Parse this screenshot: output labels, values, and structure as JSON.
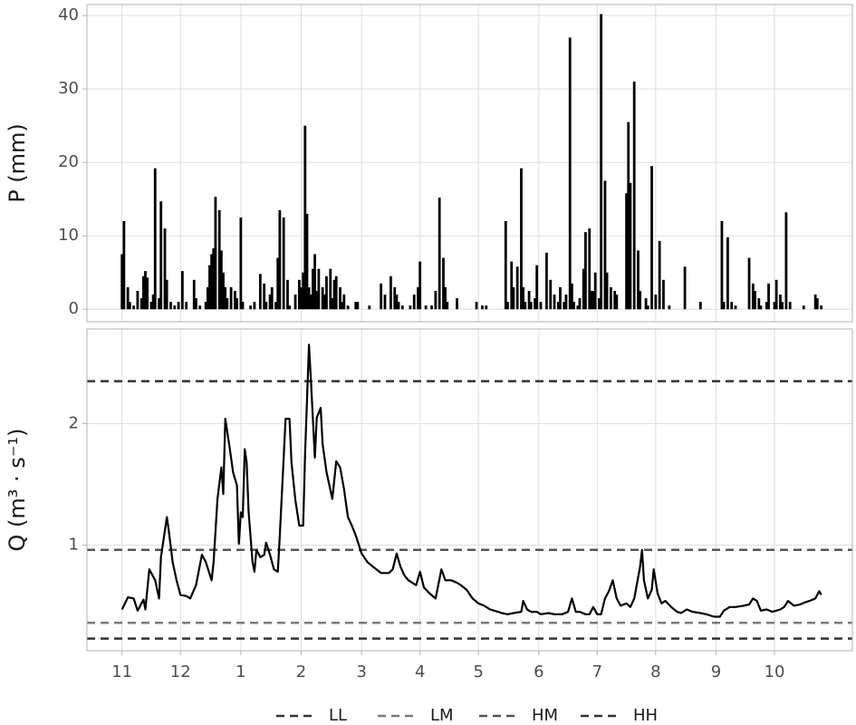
{
  "chart_data": [
    {
      "type": "bar",
      "ylabel": "P (mm)",
      "color": "#000000",
      "ylim": [
        -1.7,
        41.5
      ],
      "yticks": [
        0,
        10,
        20,
        30,
        40
      ],
      "grid": true,
      "x": [
        0,
        1,
        3,
        4,
        6,
        8,
        10,
        11,
        12,
        13,
        15,
        16,
        17,
        19,
        20,
        22,
        23,
        25,
        27,
        29,
        31,
        33,
        37,
        38,
        40,
        43,
        44,
        45,
        46,
        47,
        48,
        50,
        51,
        52,
        53,
        54,
        56,
        58,
        59,
        61,
        62,
        66,
        68,
        71,
        73,
        74,
        76,
        77,
        79,
        80,
        81,
        83,
        85,
        86,
        89,
        91,
        92,
        93,
        94,
        95,
        96,
        97,
        98,
        99,
        100,
        101,
        103,
        104,
        105,
        107,
        108,
        109,
        110,
        112,
        113,
        114,
        116,
        120,
        121,
        127,
        133,
        135,
        138,
        140,
        141,
        142,
        144,
        148,
        150,
        152,
        153,
        156,
        159,
        161,
        163,
        165,
        166,
        167,
        172,
        182,
        185,
        187,
        197,
        198,
        200,
        201,
        203,
        205,
        206,
        207,
        209,
        210,
        212,
        213,
        215,
        218,
        220,
        222,
        224,
        225,
        227,
        228,
        230,
        231,
        232,
        234,
        235,
        237,
        238,
        240,
        241,
        242,
        243,
        245,
        246,
        248,
        249,
        251,
        253,
        254,
        259,
        260,
        261,
        263,
        265,
        266,
        269,
        270,
        272,
        274,
        276,
        278,
        281,
        289,
        297,
        308,
        309,
        311,
        313,
        315,
        322,
        324,
        325,
        327,
        328,
        331,
        332,
        335,
        336,
        338,
        339,
        341,
        343,
        350,
        356,
        357,
        359
      ],
      "values": [
        7.5,
        12,
        3,
        1,
        0.5,
        2.5,
        1.5,
        4.5,
        5.2,
        4.3,
        1,
        2,
        19.2,
        1.5,
        14.7,
        11,
        4,
        1,
        0.5,
        1,
        5.2,
        1,
        4,
        1.5,
        0.5,
        1,
        3,
        6,
        7.5,
        8.3,
        15.3,
        13.5,
        8,
        5,
        3,
        1.5,
        3,
        2.5,
        1.5,
        12.5,
        1,
        0.5,
        1,
        4.8,
        3.5,
        1,
        2,
        3,
        1,
        7,
        13.5,
        12.5,
        4,
        0.5,
        2,
        4,
        3,
        5,
        25,
        13,
        3,
        2,
        5.5,
        7.5,
        2.5,
        5.5,
        3,
        2,
        4.5,
        5.5,
        1.5,
        4,
        4.5,
        3,
        1,
        2,
        0.5,
        1,
        1,
        0.5,
        3.5,
        2,
        4.5,
        3,
        2,
        1,
        0.5,
        0.5,
        2,
        3,
        6.5,
        0.5,
        0.5,
        2.5,
        15.2,
        7,
        3,
        1,
        1.5,
        1,
        0.5,
        0.5,
        12,
        1,
        6.5,
        3,
        5.8,
        19.2,
        3,
        1,
        2.5,
        1,
        1.5,
        6,
        1,
        7.7,
        4,
        2,
        1,
        3,
        1,
        2,
        37,
        3.5,
        1,
        0.5,
        1.5,
        5.5,
        10.5,
        11,
        2.5,
        2.5,
        5,
        1.5,
        40.2,
        17.5,
        5,
        3,
        2.5,
        2,
        15.8,
        25.5,
        17.2,
        31,
        8,
        2.5,
        1.5,
        0.5,
        19.5,
        2,
        9.3,
        4,
        0.5,
        5.8,
        1,
        12,
        1,
        9.8,
        1,
        0.5,
        7,
        3.5,
        2.5,
        1.5,
        0.5,
        1,
        3.5,
        1,
        4,
        2,
        1,
        13.2,
        1,
        0.5,
        2,
        1.5,
        0.5
      ]
    },
    {
      "type": "line",
      "ylabel": "Q (m³ · s⁻¹)",
      "color": "#000000",
      "xlim": [
        -18,
        375
      ],
      "xticks": [
        {
          "value": 0,
          "label": "11"
        },
        {
          "value": 30,
          "label": "12"
        },
        {
          "value": 61,
          "label": "1"
        },
        {
          "value": 92,
          "label": "2"
        },
        {
          "value": 123,
          "label": "3"
        },
        {
          "value": 153,
          "label": "4"
        },
        {
          "value": 183,
          "label": "5"
        },
        {
          "value": 214,
          "label": "6"
        },
        {
          "value": 244,
          "label": "7"
        },
        {
          "value": 274,
          "label": "8"
        },
        {
          "value": 305,
          "label": "9"
        },
        {
          "value": 335,
          "label": "10"
        }
      ],
      "ylim": [
        0.13,
        2.78
      ],
      "yticks": [
        1,
        2
      ],
      "grid": true,
      "x": [
        0,
        3,
        6,
        8,
        11,
        12,
        14,
        17,
        19,
        20,
        23,
        24,
        26,
        28,
        30,
        33,
        35,
        38,
        41,
        43,
        46,
        47,
        49,
        51,
        52,
        53,
        55,
        57,
        59,
        60,
        61,
        62,
        63,
        64,
        65,
        67,
        68,
        69,
        71,
        73,
        74,
        76,
        78,
        80,
        81,
        84,
        86,
        87,
        89,
        91,
        93,
        94,
        96,
        97,
        99,
        100,
        102,
        103,
        105,
        108,
        110,
        112,
        114,
        116,
        118,
        120,
        123,
        126,
        129,
        133,
        137,
        139,
        141,
        143,
        145,
        147,
        151,
        153,
        155,
        158,
        161,
        164,
        166,
        169,
        172,
        174,
        177,
        180,
        183,
        186,
        189,
        193,
        195,
        198,
        201,
        205,
        206,
        208,
        210,
        213,
        215,
        219,
        222,
        226,
        229,
        231,
        233,
        235,
        238,
        240,
        242,
        244,
        246,
        248,
        250,
        252,
        254,
        256,
        259,
        261,
        263,
        266,
        267,
        268,
        270,
        272,
        273,
        275,
        277,
        279,
        282,
        285,
        287,
        290,
        293,
        297,
        300,
        304,
        307,
        309,
        312,
        315,
        319,
        322,
        324,
        326,
        328,
        331,
        334,
        338,
        340,
        342,
        345,
        348,
        351,
        353,
        356,
        358,
        359
      ],
      "values": [
        0.47,
        0.57,
        0.56,
        0.46,
        0.55,
        0.47,
        0.8,
        0.71,
        0.56,
        0.9,
        1.23,
        1.12,
        0.86,
        0.71,
        0.59,
        0.58,
        0.56,
        0.67,
        0.92,
        0.86,
        0.71,
        0.86,
        1.38,
        1.64,
        1.42,
        2.04,
        1.83,
        1.6,
        1.49,
        1.01,
        1.27,
        1.23,
        1.79,
        1.68,
        1.27,
        0.86,
        0.78,
        0.96,
        0.9,
        0.92,
        1.02,
        0.92,
        0.8,
        0.78,
        1.08,
        2.04,
        2.04,
        1.68,
        1.37,
        1.16,
        1.16,
        1.75,
        2.65,
        2.35,
        1.72,
        2.05,
        2.13,
        1.83,
        1.6,
        1.38,
        1.69,
        1.64,
        1.46,
        1.23,
        1.16,
        1.08,
        0.93,
        0.86,
        0.82,
        0.77,
        0.77,
        0.8,
        0.93,
        0.82,
        0.75,
        0.71,
        0.67,
        0.78,
        0.65,
        0.6,
        0.56,
        0.8,
        0.71,
        0.71,
        0.69,
        0.67,
        0.63,
        0.56,
        0.52,
        0.5,
        0.47,
        0.45,
        0.44,
        0.43,
        0.44,
        0.45,
        0.54,
        0.47,
        0.45,
        0.45,
        0.43,
        0.44,
        0.43,
        0.43,
        0.45,
        0.56,
        0.45,
        0.45,
        0.43,
        0.43,
        0.49,
        0.43,
        0.43,
        0.56,
        0.62,
        0.71,
        0.56,
        0.5,
        0.52,
        0.49,
        0.56,
        0.82,
        0.96,
        0.71,
        0.56,
        0.63,
        0.8,
        0.6,
        0.52,
        0.54,
        0.49,
        0.45,
        0.44,
        0.47,
        0.45,
        0.44,
        0.43,
        0.41,
        0.41,
        0.46,
        0.49,
        0.49,
        0.5,
        0.51,
        0.56,
        0.54,
        0.46,
        0.47,
        0.45,
        0.47,
        0.49,
        0.54,
        0.5,
        0.51,
        0.53,
        0.54,
        0.56,
        0.62,
        0.59
      ],
      "hlines": [
        {
          "name": "LL",
          "value": 0.23,
          "color": "#333333"
        },
        {
          "name": "LM",
          "value": 0.36,
          "color": "#7a7a7a"
        },
        {
          "name": "HM",
          "value": 0.96,
          "color": "#555555"
        },
        {
          "name": "HH",
          "value": 2.35,
          "color": "#333333"
        }
      ]
    }
  ]
}
